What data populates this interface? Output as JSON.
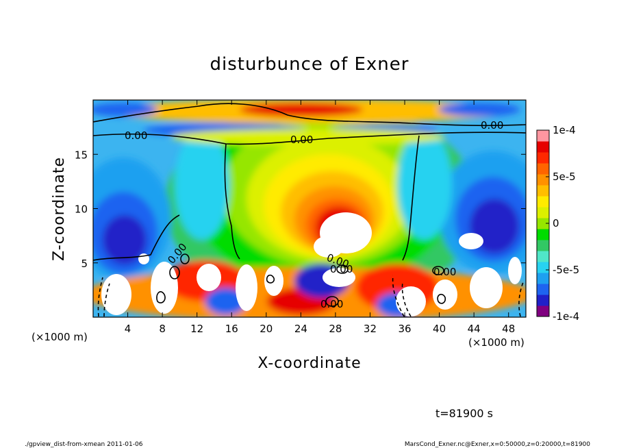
{
  "chart_data": {
    "type": "heatmap",
    "title": "disturbunce of Exner",
    "xlabel": "X-coordinate",
    "ylabel": "Z-coordinate",
    "x_unit": "(×1000 m)",
    "y_unit": "(×1000 m)",
    "xlim": [
      0,
      50
    ],
    "ylim": [
      0,
      20
    ],
    "x_ticks": [
      "4",
      "8",
      "12",
      "16",
      "20",
      "24",
      "28",
      "32",
      "36",
      "40",
      "44",
      "48"
    ],
    "y_ticks": [
      "5",
      "10",
      "15"
    ],
    "colorbar": {
      "min": -0.0001,
      "max": 0.0001,
      "tick_labels": [
        "1e-4",
        "5e-5",
        "0",
        "-5e-5",
        "-1e-4"
      ],
      "colors": [
        "#800080",
        "#2020c8",
        "#1e64f0",
        "#1ea0f0",
        "#28d2f0",
        "#50e6c8",
        "#32c864",
        "#00dc00",
        "#96e600",
        "#dcf000",
        "#ffeb00",
        "#ffbe00",
        "#ff9100",
        "#ff6400",
        "#ff2800",
        "#e60000",
        "#ff96a0"
      ]
    },
    "contour_labels": [
      "0.00",
      "0.00",
      "0.00",
      "0.00",
      "0.00",
      "0.00",
      "0.00",
      "0.00"
    ],
    "time_label": "t=81900 s"
  },
  "footer": {
    "left": "./gpview_dist-from-xmean  2011-01-06",
    "right": "MarsCond_Exner.nc@Exner,x=0:50000,z=0:20000,t=81900"
  }
}
